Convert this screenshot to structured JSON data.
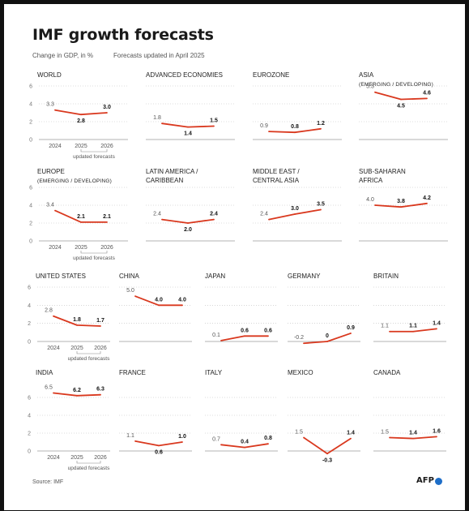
{
  "title": "IMF growth forecasts",
  "subtitle_left": "Change in GDP, in %",
  "subtitle_right": "Forecasts updated in April 2025",
  "source": "Source: IMF",
  "logo_text": "AFP",
  "colors": {
    "line": "#d9381e",
    "logo_dot": "#1e6ec8",
    "axis": "#9a9a9a"
  },
  "axis": {
    "ticks": [
      "6",
      "4",
      "2",
      "0"
    ],
    "x_labels": [
      "2024",
      "2025",
      "2026"
    ],
    "bracket_label": "updated forecasts"
  },
  "chart_data": [
    {
      "type": "line",
      "title": [
        "WORLD"
      ],
      "x": [
        2024,
        2025,
        2026
      ],
      "values": [
        3.3,
        2.8,
        3.0
      ],
      "labels": [
        "3.3",
        "2.8",
        "3.0"
      ],
      "ylim": [
        0,
        6
      ]
    },
    {
      "type": "line",
      "title": [
        "ADVANCED ECONOMIES"
      ],
      "x": [
        2024,
        2025,
        2026
      ],
      "values": [
        1.8,
        1.4,
        1.5
      ],
      "labels": [
        "1.8",
        "1.4",
        "1.5"
      ],
      "ylim": [
        0,
        6
      ]
    },
    {
      "type": "line",
      "title": [
        "EUROZONE"
      ],
      "x": [
        2024,
        2025,
        2026
      ],
      "values": [
        0.9,
        0.8,
        1.2
      ],
      "labels": [
        "0.9",
        "0.8",
        "1.2"
      ],
      "ylim": [
        0,
        6
      ]
    },
    {
      "type": "line",
      "title": [
        "ASIA",
        "(EMERGING / DEVELOPING)"
      ],
      "x": [
        2024,
        2025,
        2026
      ],
      "values": [
        5.3,
        4.5,
        4.6
      ],
      "labels": [
        "5.3",
        "4.5",
        "4.6"
      ],
      "ylim": [
        0,
        6
      ]
    },
    {
      "type": "line",
      "title": [
        "EUROPE",
        "(EMERGING / DEVELOPING)"
      ],
      "x": [
        2024,
        2025,
        2026
      ],
      "values": [
        3.4,
        2.1,
        2.1
      ],
      "labels": [
        "3.4",
        "2.1",
        "2.1"
      ],
      "ylim": [
        0,
        6
      ]
    },
    {
      "type": "line",
      "title": [
        "LATIN AMERICA /",
        "CARIBBEAN"
      ],
      "x": [
        2024,
        2025,
        2026
      ],
      "values": [
        2.4,
        2.0,
        2.4
      ],
      "labels": [
        "2.4",
        "2.0",
        "2.4"
      ],
      "ylim": [
        0,
        6
      ]
    },
    {
      "type": "line",
      "title": [
        "MIDDLE EAST /",
        "CENTRAL ASIA"
      ],
      "x": [
        2024,
        2025,
        2026
      ],
      "values": [
        2.4,
        3.0,
        3.5
      ],
      "labels": [
        "2.4",
        "3.0",
        "3.5"
      ],
      "ylim": [
        0,
        6
      ]
    },
    {
      "type": "line",
      "title": [
        "SUB-SAHARAN",
        "AFRICA"
      ],
      "x": [
        2024,
        2025,
        2026
      ],
      "values": [
        4.0,
        3.8,
        4.2
      ],
      "labels": [
        "4.0",
        "3.8",
        "4.2"
      ],
      "ylim": [
        0,
        6
      ]
    },
    {
      "type": "line",
      "title": [
        "UNITED STATES"
      ],
      "x": [
        2024,
        2025,
        2026
      ],
      "values": [
        2.8,
        1.8,
        1.7
      ],
      "labels": [
        "2.8",
        "1.8",
        "1.7"
      ],
      "ylim": [
        0,
        6
      ]
    },
    {
      "type": "line",
      "title": [
        "CHINA"
      ],
      "x": [
        2024,
        2025,
        2026
      ],
      "values": [
        5.0,
        4.0,
        4.0
      ],
      "labels": [
        "5.0",
        "4.0",
        "4.0"
      ],
      "ylim": [
        0,
        6
      ]
    },
    {
      "type": "line",
      "title": [
        "JAPAN"
      ],
      "x": [
        2024,
        2025,
        2026
      ],
      "values": [
        0.1,
        0.6,
        0.6
      ],
      "labels": [
        "0.1",
        "0.6",
        "0.6"
      ],
      "ylim": [
        0,
        6
      ]
    },
    {
      "type": "line",
      "title": [
        "GERMANY"
      ],
      "x": [
        2024,
        2025,
        2026
      ],
      "values": [
        -0.2,
        0,
        0.9
      ],
      "labels": [
        "-0.2",
        "0",
        "0.9"
      ],
      "ylim": [
        0,
        6
      ]
    },
    {
      "type": "line",
      "title": [
        "BRITAIN"
      ],
      "x": [
        2024,
        2025,
        2026
      ],
      "values": [
        1.1,
        1.1,
        1.4
      ],
      "labels": [
        "1.1",
        "1.1",
        "1.4"
      ],
      "ylim": [
        0,
        6
      ]
    },
    {
      "type": "line",
      "title": [
        "INDIA"
      ],
      "x": [
        2024,
        2025,
        2026
      ],
      "values": [
        6.5,
        6.2,
        6.3
      ],
      "labels": [
        "6.5",
        "6.2",
        "6.3"
      ],
      "ylim": [
        0,
        6
      ]
    },
    {
      "type": "line",
      "title": [
        "FRANCE"
      ],
      "x": [
        2024,
        2025,
        2026
      ],
      "values": [
        1.1,
        0.6,
        1.0
      ],
      "labels": [
        "1.1",
        "0.6",
        "1.0"
      ],
      "ylim": [
        0,
        6
      ]
    },
    {
      "type": "line",
      "title": [
        "ITALY"
      ],
      "x": [
        2024,
        2025,
        2026
      ],
      "values": [
        0.7,
        0.4,
        0.8
      ],
      "labels": [
        "0.7",
        "0.4",
        "0.8"
      ],
      "ylim": [
        0,
        6
      ]
    },
    {
      "type": "line",
      "title": [
        "MEXICO"
      ],
      "x": [
        2024,
        2025,
        2026
      ],
      "values": [
        1.5,
        -0.3,
        1.4
      ],
      "labels": [
        "1.5",
        "-0.3",
        "1.4"
      ],
      "ylim": [
        0,
        6
      ]
    },
    {
      "type": "line",
      "title": [
        "CANADA"
      ],
      "x": [
        2024,
        2025,
        2026
      ],
      "values": [
        1.5,
        1.4,
        1.6
      ],
      "labels": [
        "1.5",
        "1.4",
        "1.6"
      ],
      "ylim": [
        0,
        6
      ]
    }
  ]
}
